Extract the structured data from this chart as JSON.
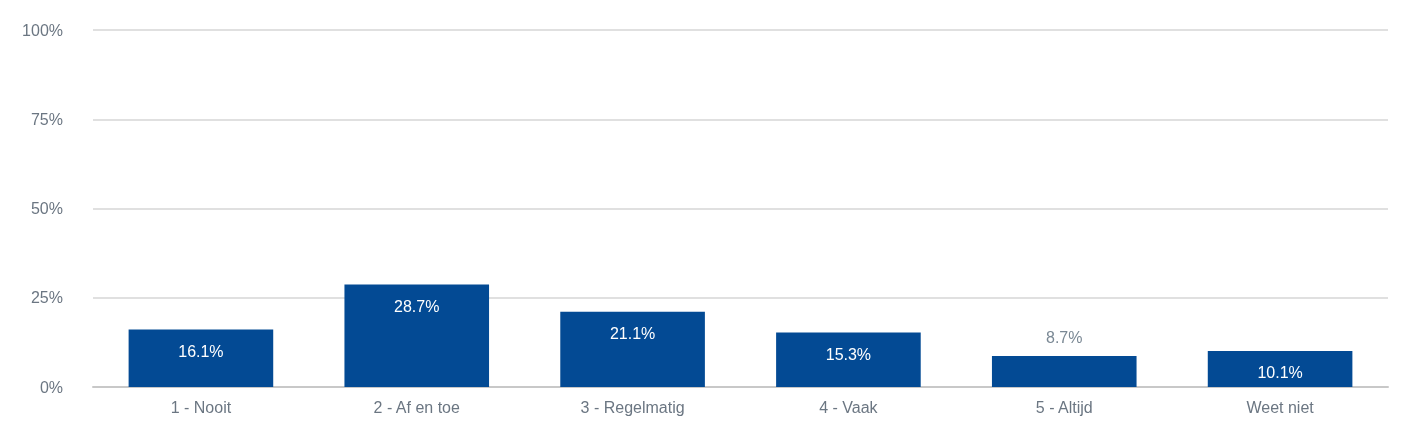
{
  "chart_data": {
    "type": "bar",
    "categories": [
      "1 - Nooit",
      "2 - Af en toe",
      "3 - Regelmatig",
      "4 - Vaak",
      "5 - Altijd",
      "Weet niet"
    ],
    "values": [
      16.1,
      28.7,
      21.1,
      15.3,
      8.7,
      10.1
    ],
    "value_labels": [
      "16.1%",
      "28.7%",
      "21.1%",
      "15.3%",
      "8.7%",
      "10.1%"
    ],
    "color": "#034a94",
    "ylim": [
      0,
      100
    ],
    "yticks": [
      {
        "value": 0,
        "label": "0%"
      },
      {
        "value": 25,
        "label": "25%"
      },
      {
        "value": 50,
        "label": "50%"
      },
      {
        "value": 75,
        "label": "75%"
      },
      {
        "value": 100,
        "label": "100%"
      }
    ],
    "grid": "y"
  }
}
